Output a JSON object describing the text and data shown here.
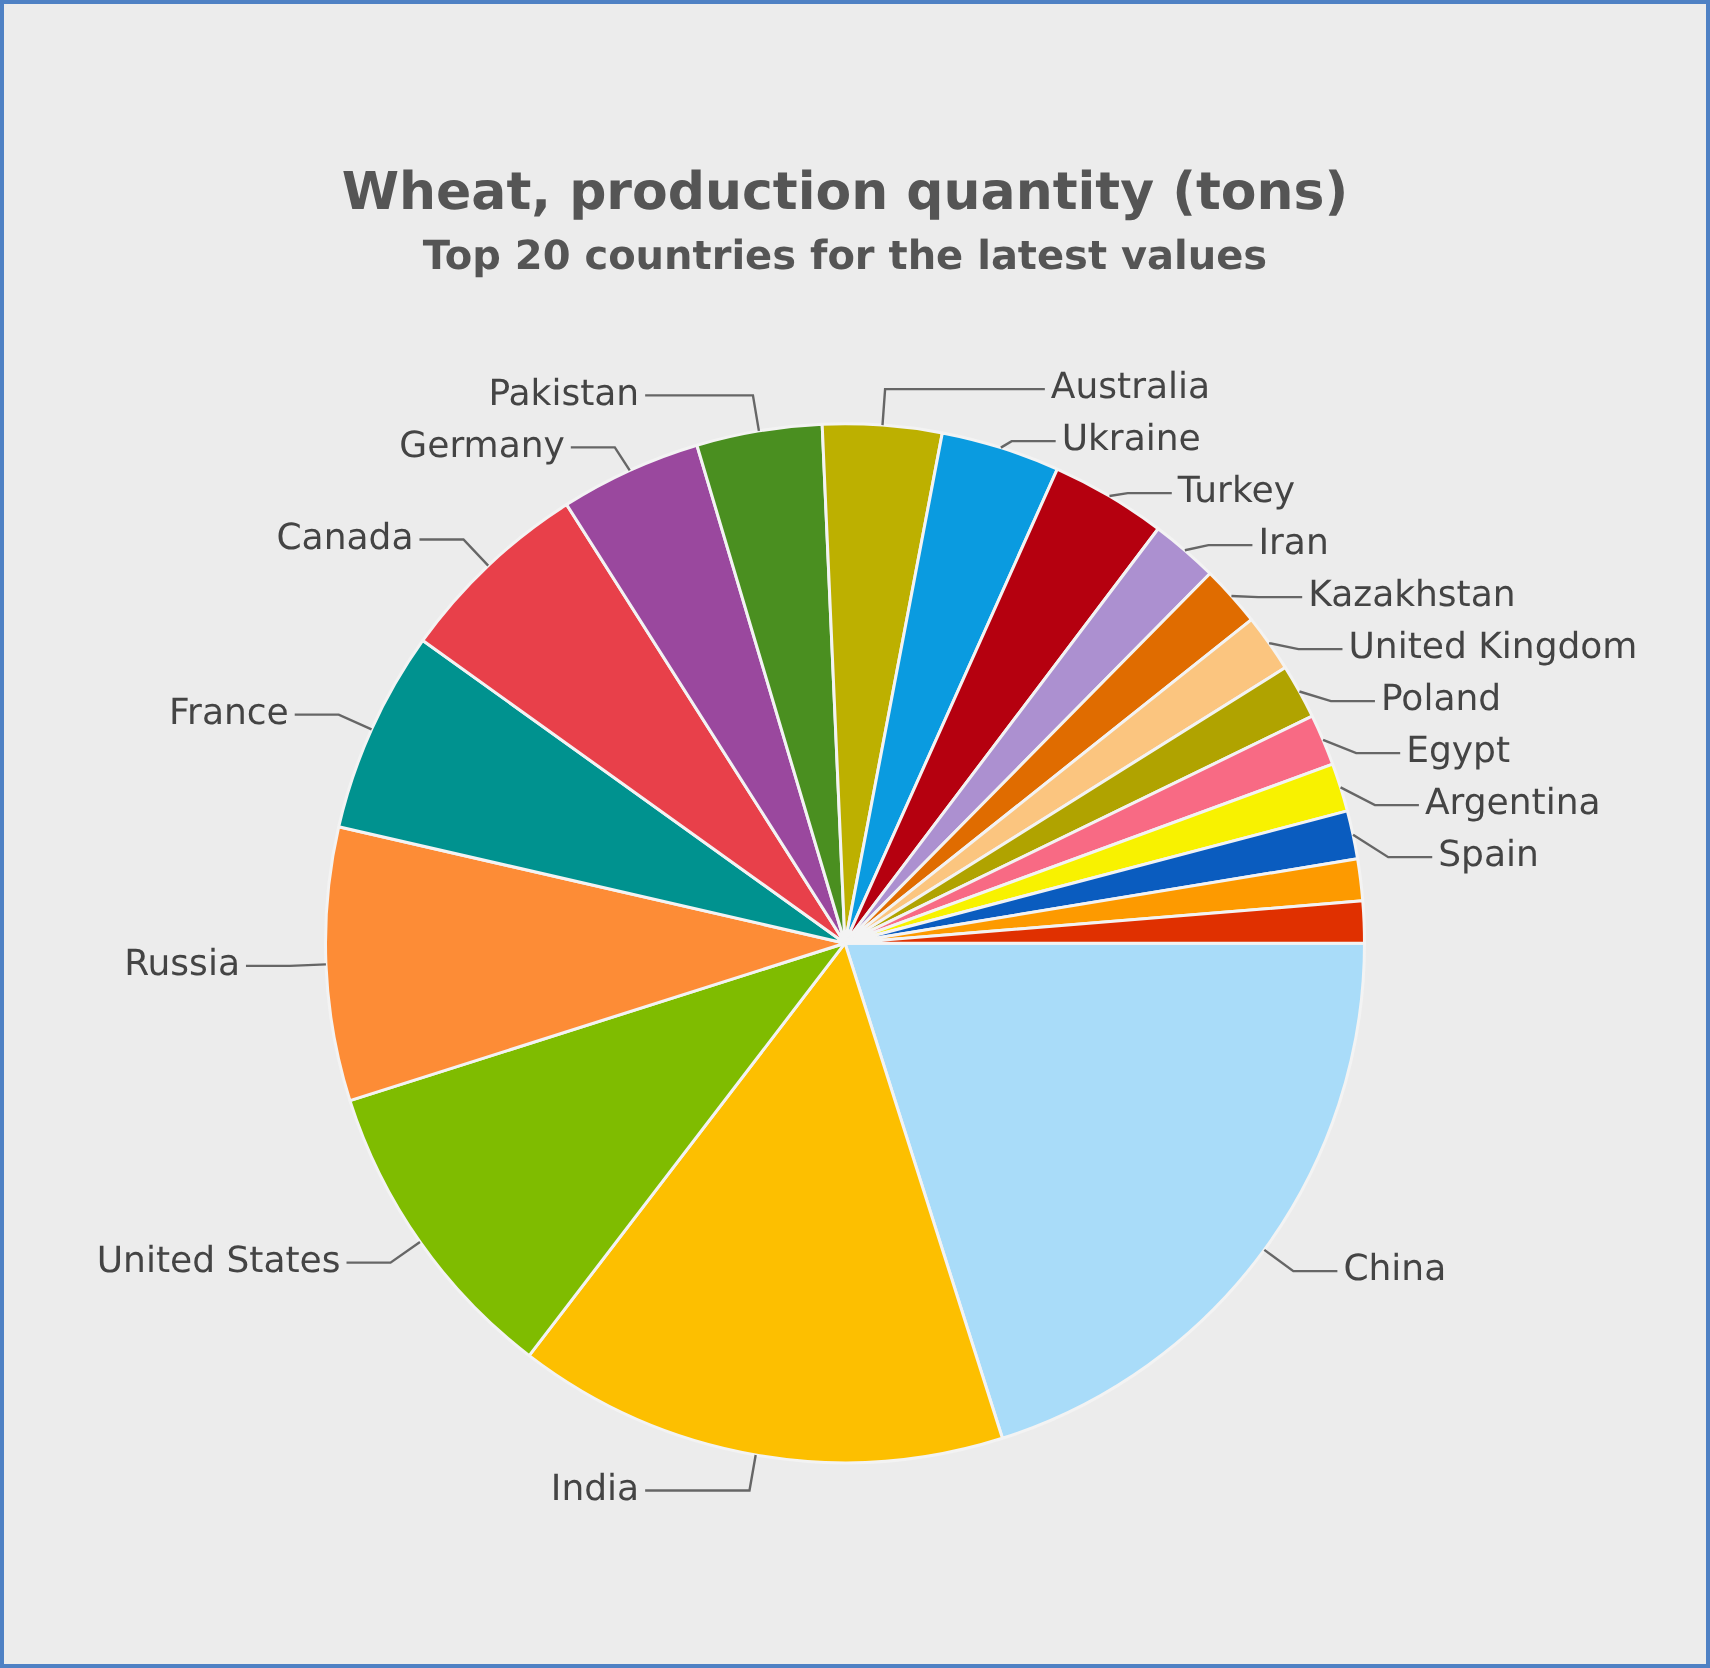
{
  "chart_data": {
    "type": "pie",
    "title": "Wheat, production quantity (tons)",
    "subtitle": "Top 20 countries for the latest values",
    "categories": [
      "China",
      "India",
      "United States",
      "Russia",
      "France",
      "Canada",
      "Germany",
      "Pakistan",
      "Australia",
      "Ukraine",
      "Turkey",
      "Iran",
      "Kazakhstan",
      "United Kingdom",
      "Poland",
      "Egypt",
      "Argentina",
      "Spain",
      null,
      null
    ],
    "values": [
      20.1,
      15.3,
      9.7,
      8.5,
      6.3,
      6.1,
      4.4,
      3.9,
      3.7,
      3.7,
      3.6,
      2.1,
      1.9,
      1.8,
      1.7,
      1.6,
      1.5,
      1.5,
      1.3,
      1.3
    ],
    "colors": [
      "#a9dcf9",
      "#fdbf00",
      "#7fbc00",
      "#fd8c36",
      "#00928f",
      "#e8404a",
      "#9a489e",
      "#4a8f20",
      "#bdb000",
      "#0a9be0",
      "#b5000f",
      "#ac90d0",
      "#e06c00",
      "#fbc57f",
      "#b0a300",
      "#f86a84",
      "#f8f200",
      "#0a5cbf",
      "#fd9a00",
      "#e03000"
    ],
    "legend": false
  }
}
